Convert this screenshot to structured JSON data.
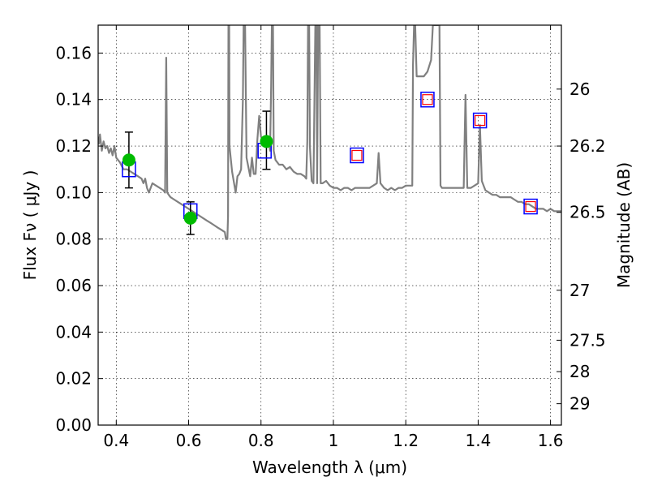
{
  "chart_data": {
    "type": "scatter",
    "xlabel": "Wavelength  λ (μm)",
    "ylabel": "Flux  Fν  ( μJy )",
    "ylabel_right": "Magnitude (AB)",
    "xlim": [
      0.35,
      1.63
    ],
    "ylim": [
      0.0,
      0.172
    ],
    "grid": true,
    "x_ticks": [
      {
        "value": 0.4,
        "label": "0.4"
      },
      {
        "value": 0.6,
        "label": "0.6"
      },
      {
        "value": 0.8,
        "label": "0.8"
      },
      {
        "value": 1.0,
        "label": "1"
      },
      {
        "value": 1.2,
        "label": "1.2"
      },
      {
        "value": 1.4,
        "label": "1.4"
      },
      {
        "value": 1.6,
        "label": "1.6"
      }
    ],
    "y_ticks": [
      {
        "value": 0.0,
        "label": "0.00"
      },
      {
        "value": 0.02,
        "label": "0.02"
      },
      {
        "value": 0.04,
        "label": "0.04"
      },
      {
        "value": 0.06,
        "label": "0.06"
      },
      {
        "value": 0.08,
        "label": "0.08"
      },
      {
        "value": 0.1,
        "label": "0.10"
      },
      {
        "value": 0.12,
        "label": "0.12"
      },
      {
        "value": 0.14,
        "label": "0.14"
      },
      {
        "value": 0.16,
        "label": "0.16"
      }
    ],
    "right_ticks": [
      {
        "flux": 0.1445,
        "label": "26"
      },
      {
        "flux": 0.12,
        "label": "26.2"
      },
      {
        "flux": 0.0915,
        "label": "26.5"
      },
      {
        "flux": 0.058,
        "label": "27"
      },
      {
        "flux": 0.0365,
        "label": "27.5"
      },
      {
        "flux": 0.023,
        "label": "28"
      },
      {
        "flux": 0.0092,
        "label": "29"
      }
    ],
    "series": [
      {
        "kind": "line",
        "color": "#808080",
        "points": [
          [
            0.35,
            0.124
          ],
          [
            0.352,
            0.121
          ],
          [
            0.355,
            0.125
          ],
          [
            0.36,
            0.118
          ],
          [
            0.365,
            0.122
          ],
          [
            0.37,
            0.119
          ],
          [
            0.375,
            0.12
          ],
          [
            0.38,
            0.117
          ],
          [
            0.385,
            0.119
          ],
          [
            0.39,
            0.116
          ],
          [
            0.395,
            0.12
          ],
          [
            0.4,
            0.115
          ],
          [
            0.41,
            0.113
          ],
          [
            0.42,
            0.11
          ],
          [
            0.43,
            0.11
          ],
          [
            0.44,
            0.109
          ],
          [
            0.45,
            0.108
          ],
          [
            0.46,
            0.107
          ],
          [
            0.47,
            0.106
          ],
          [
            0.475,
            0.104
          ],
          [
            0.48,
            0.106
          ],
          [
            0.485,
            0.102
          ],
          [
            0.49,
            0.1
          ],
          [
            0.5,
            0.104
          ],
          [
            0.51,
            0.103
          ],
          [
            0.52,
            0.102
          ],
          [
            0.53,
            0.101
          ],
          [
            0.535,
            0.1
          ],
          [
            0.538,
            0.158
          ],
          [
            0.541,
            0.1
          ],
          [
            0.545,
            0.099
          ],
          [
            0.55,
            0.098
          ],
          [
            0.56,
            0.097
          ],
          [
            0.57,
            0.096
          ],
          [
            0.58,
            0.095
          ],
          [
            0.59,
            0.094
          ],
          [
            0.6,
            0.093
          ],
          [
            0.61,
            0.092
          ],
          [
            0.62,
            0.091
          ],
          [
            0.63,
            0.09
          ],
          [
            0.64,
            0.089
          ],
          [
            0.65,
            0.088
          ],
          [
            0.66,
            0.087
          ],
          [
            0.67,
            0.086
          ],
          [
            0.68,
            0.085
          ],
          [
            0.69,
            0.084
          ],
          [
            0.7,
            0.083
          ],
          [
            0.703,
            0.08
          ],
          [
            0.707,
            0.08
          ],
          [
            0.709,
            0.09
          ],
          [
            0.71,
            0.172
          ],
          [
            0.712,
            0.172
          ],
          [
            0.713,
            0.12
          ],
          [
            0.72,
            0.109
          ],
          [
            0.73,
            0.1
          ],
          [
            0.735,
            0.107
          ],
          [
            0.74,
            0.108
          ],
          [
            0.745,
            0.11
          ],
          [
            0.75,
            0.14
          ],
          [
            0.752,
            0.172
          ],
          [
            0.756,
            0.172
          ],
          [
            0.76,
            0.115
          ],
          [
            0.77,
            0.107
          ],
          [
            0.775,
            0.115
          ],
          [
            0.78,
            0.108
          ],
          [
            0.785,
            0.108
          ],
          [
            0.79,
            0.123
          ],
          [
            0.795,
            0.133
          ],
          [
            0.8,
            0.124
          ],
          [
            0.81,
            0.122
          ],
          [
            0.82,
            0.123
          ],
          [
            0.825,
            0.118
          ],
          [
            0.828,
            0.145
          ],
          [
            0.83,
            0.172
          ],
          [
            0.833,
            0.172
          ],
          [
            0.835,
            0.118
          ],
          [
            0.84,
            0.114
          ],
          [
            0.85,
            0.112
          ],
          [
            0.86,
            0.112
          ],
          [
            0.87,
            0.11
          ],
          [
            0.88,
            0.111
          ],
          [
            0.89,
            0.109
          ],
          [
            0.9,
            0.108
          ],
          [
            0.91,
            0.108
          ],
          [
            0.92,
            0.107
          ],
          [
            0.925,
            0.106
          ],
          [
            0.928,
            0.122
          ],
          [
            0.93,
            0.172
          ],
          [
            0.933,
            0.172
          ],
          [
            0.935,
            0.12
          ],
          [
            0.94,
            0.105
          ],
          [
            0.945,
            0.104
          ],
          [
            0.95,
            0.172
          ],
          [
            0.953,
            0.172
          ],
          [
            0.955,
            0.104
          ],
          [
            0.958,
            0.172
          ],
          [
            0.962,
            0.172
          ],
          [
            0.965,
            0.104
          ],
          [
            0.97,
            0.104
          ],
          [
            0.98,
            0.105
          ],
          [
            0.99,
            0.103
          ],
          [
            1.0,
            0.102
          ],
          [
            1.01,
            0.102
          ],
          [
            1.02,
            0.101
          ],
          [
            1.03,
            0.102
          ],
          [
            1.04,
            0.102
          ],
          [
            1.05,
            0.101
          ],
          [
            1.06,
            0.102
          ],
          [
            1.07,
            0.102
          ],
          [
            1.08,
            0.102
          ],
          [
            1.09,
            0.102
          ],
          [
            1.1,
            0.102
          ],
          [
            1.11,
            0.103
          ],
          [
            1.12,
            0.104
          ],
          [
            1.125,
            0.117
          ],
          [
            1.13,
            0.104
          ],
          [
            1.14,
            0.102
          ],
          [
            1.15,
            0.101
          ],
          [
            1.16,
            0.102
          ],
          [
            1.17,
            0.101
          ],
          [
            1.18,
            0.102
          ],
          [
            1.19,
            0.102
          ],
          [
            1.2,
            0.103
          ],
          [
            1.21,
            0.103
          ],
          [
            1.218,
            0.103
          ],
          [
            1.22,
            0.155
          ],
          [
            1.223,
            0.172
          ],
          [
            1.226,
            0.172
          ],
          [
            1.23,
            0.15
          ],
          [
            1.24,
            0.15
          ],
          [
            1.25,
            0.15
          ],
          [
            1.26,
            0.152
          ],
          [
            1.27,
            0.157
          ],
          [
            1.275,
            0.172
          ],
          [
            1.28,
            0.172
          ],
          [
            1.29,
            0.172
          ],
          [
            1.293,
            0.172
          ],
          [
            1.296,
            0.103
          ],
          [
            1.3,
            0.102
          ],
          [
            1.31,
            0.102
          ],
          [
            1.32,
            0.102
          ],
          [
            1.33,
            0.102
          ],
          [
            1.34,
            0.102
          ],
          [
            1.35,
            0.102
          ],
          [
            1.36,
            0.102
          ],
          [
            1.365,
            0.142
          ],
          [
            1.37,
            0.102
          ],
          [
            1.38,
            0.102
          ],
          [
            1.39,
            0.103
          ],
          [
            1.4,
            0.104
          ],
          [
            1.405,
            0.129
          ],
          [
            1.41,
            0.105
          ],
          [
            1.42,
            0.101
          ],
          [
            1.43,
            0.1
          ],
          [
            1.44,
            0.099
          ],
          [
            1.45,
            0.099
          ],
          [
            1.46,
            0.098
          ],
          [
            1.47,
            0.098
          ],
          [
            1.48,
            0.098
          ],
          [
            1.49,
            0.098
          ],
          [
            1.5,
            0.097
          ],
          [
            1.51,
            0.096
          ],
          [
            1.52,
            0.096
          ],
          [
            1.53,
            0.095
          ],
          [
            1.54,
            0.095
          ],
          [
            1.55,
            0.094
          ],
          [
            1.56,
            0.093
          ],
          [
            1.57,
            0.093
          ],
          [
            1.58,
            0.093
          ],
          [
            1.59,
            0.092
          ],
          [
            1.6,
            0.093
          ],
          [
            1.61,
            0.092
          ],
          [
            1.62,
            0.092
          ],
          [
            1.63,
            0.092
          ]
        ]
      },
      {
        "kind": "errorbar",
        "color": "#000000",
        "points": [
          {
            "x": 0.435,
            "y": 0.114,
            "ylo": 0.102,
            "yhi": 0.126
          },
          {
            "x": 0.605,
            "y": 0.089,
            "ylo": 0.082,
            "yhi": 0.096
          },
          {
            "x": 0.815,
            "y": 0.122,
            "ylo": 0.11,
            "yhi": 0.135
          }
        ]
      },
      {
        "kind": "square",
        "color": "#0000ff",
        "points": [
          {
            "x": 0.435,
            "y": 0.11
          },
          {
            "x": 0.605,
            "y": 0.092
          },
          {
            "x": 0.81,
            "y": 0.118
          },
          {
            "x": 1.065,
            "y": 0.116
          },
          {
            "x": 1.26,
            "y": 0.14
          },
          {
            "x": 1.405,
            "y": 0.131
          },
          {
            "x": 1.545,
            "y": 0.094
          }
        ]
      },
      {
        "kind": "square-small",
        "color": "#ff0000",
        "points": [
          {
            "x": 1.065,
            "y": 0.116
          },
          {
            "x": 1.26,
            "y": 0.14
          },
          {
            "x": 1.405,
            "y": 0.131
          },
          {
            "x": 1.545,
            "y": 0.094
          }
        ]
      },
      {
        "kind": "circle",
        "color": "#00bb00",
        "points": [
          {
            "x": 0.435,
            "y": 0.114
          },
          {
            "x": 0.605,
            "y": 0.089
          },
          {
            "x": 0.815,
            "y": 0.122
          }
        ]
      }
    ]
  }
}
